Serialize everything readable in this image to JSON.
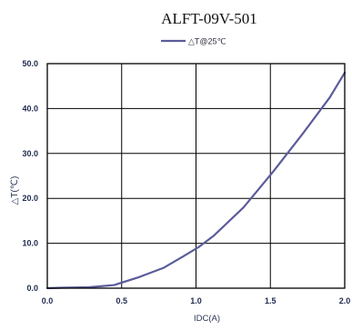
{
  "chart_data": {
    "type": "line",
    "title": "ALFT-09V-501",
    "xlabel": "IDC(A)",
    "ylabel": "△T(℃)",
    "xlim": [
      0.0,
      2.0
    ],
    "ylim": [
      0.0,
      50.0
    ],
    "x_ticks": [
      0.0,
      0.5,
      1.0,
      1.5,
      2.0
    ],
    "x_tick_labels": [
      "0.0",
      "0.5",
      "1.0",
      "1.5",
      "2.0"
    ],
    "y_ticks": [
      0.0,
      10.0,
      20.0,
      30.0,
      40.0,
      50.0
    ],
    "y_tick_labels": [
      "0.0",
      "10.0",
      "20.0",
      "30.0",
      "40.0",
      "50.0"
    ],
    "grid": true,
    "legend_position": "top-center",
    "series": [
      {
        "name": "△T@25℃",
        "color": "#5b5b9b",
        "x": [
          0.0,
          0.1,
          0.28,
          0.45,
          0.62,
          0.78,
          0.92,
          1.02,
          1.12,
          1.32,
          1.52,
          1.72,
          1.9,
          2.0
        ],
        "y": [
          0.0,
          0.1,
          0.2,
          0.7,
          2.5,
          4.5,
          7.2,
          9.2,
          11.7,
          18.0,
          26.0,
          34.5,
          42.5,
          48.0
        ]
      }
    ]
  }
}
